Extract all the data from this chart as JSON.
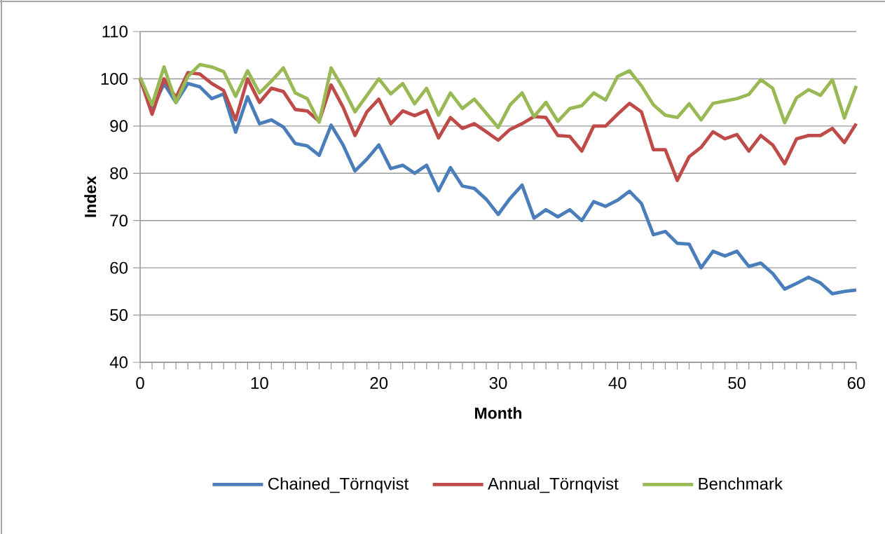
{
  "chart_data": {
    "type": "line",
    "xlabel": "Month",
    "ylabel": "Index",
    "x": [
      0,
      1,
      2,
      3,
      4,
      5,
      6,
      7,
      8,
      9,
      10,
      11,
      12,
      13,
      14,
      15,
      16,
      17,
      18,
      19,
      20,
      21,
      22,
      23,
      24,
      25,
      26,
      27,
      28,
      29,
      30,
      31,
      32,
      33,
      34,
      35,
      36,
      37,
      38,
      39,
      40,
      41,
      42,
      43,
      44,
      45,
      46,
      47,
      48,
      49,
      50,
      51,
      52,
      53,
      54,
      55,
      56,
      57,
      58,
      59,
      60
    ],
    "series": [
      {
        "name": "Chained_Törnqvist",
        "color": "#4a7ebb",
        "values": [
          100,
          93.5,
          99,
          95,
          99,
          98.3,
          95.8,
          96.8,
          88.7,
          96.2,
          90.5,
          91.3,
          89.8,
          86.3,
          85.8,
          83.8,
          90.2,
          86,
          80.5,
          83,
          86,
          81,
          81.7,
          80,
          81.7,
          76.3,
          81.2,
          77.3,
          76.8,
          74.5,
          71.3,
          74.7,
          77.5,
          70.5,
          72.3,
          70.8,
          72.3,
          70,
          74,
          73,
          74.3,
          76.2,
          73.6,
          67,
          67.7,
          65.2,
          65,
          60,
          63.5,
          62.5,
          63.5,
          60.3,
          61,
          58.8,
          55.5,
          56.7,
          58,
          56.8,
          54.5,
          55,
          55.3
        ]
      },
      {
        "name": "Annual_Törnqvist",
        "color": "#be4b48",
        "values": [
          100,
          92.5,
          100,
          96,
          101.3,
          101,
          99,
          97.5,
          91.3,
          100,
          95,
          98,
          97.3,
          93.5,
          93.2,
          91,
          98.7,
          94,
          88,
          93,
          95.7,
          90.5,
          93.2,
          92.2,
          93.3,
          87.5,
          91.8,
          89.5,
          90.5,
          88.8,
          87,
          89.3,
          90.5,
          92,
          91.8,
          88,
          87.8,
          84.7,
          90,
          90,
          92.5,
          94.8,
          93,
          85,
          85,
          78.5,
          83.5,
          85.5,
          88.8,
          87.3,
          88.2,
          84.7,
          88,
          86,
          82,
          87.3,
          88,
          88,
          89.5,
          86.5,
          90.5
        ]
      },
      {
        "name": "Benchmark",
        "color": "#98b954",
        "values": [
          100.3,
          94.5,
          102.5,
          95,
          100.5,
          103,
          102.5,
          101.5,
          96.3,
          101.7,
          97,
          99.5,
          102.3,
          97,
          95.8,
          90.8,
          102.3,
          98,
          93,
          96.5,
          100,
          96.8,
          99,
          94.7,
          98,
          92.3,
          97,
          93.7,
          95.7,
          92.7,
          89.7,
          94.5,
          97,
          92,
          95,
          91,
          93.7,
          94.3,
          97,
          95.5,
          100.5,
          101.7,
          98.5,
          94.5,
          92.3,
          91.8,
          94.7,
          91.3,
          94.8,
          95.3,
          95.8,
          96.7,
          99.8,
          98,
          90.7,
          96,
          97.7,
          96.5,
          99.8,
          91.7,
          98.5
        ]
      }
    ],
    "xlim": [
      0,
      60
    ],
    "xticks": [
      0,
      {
        "value": 1,
        "label": null
      },
      {
        "value": 2,
        "label": null
      },
      {
        "value": 3,
        "label": null
      },
      {
        "value": 4,
        "label": null
      },
      {
        "value": 5,
        "label": null
      },
      {
        "value": 6,
        "label": null
      },
      {
        "value": 7,
        "label": null
      },
      {
        "value": 8,
        "label": null
      },
      {
        "value": 9,
        "label": null
      },
      10,
      {
        "value": 11,
        "label": null
      },
      {
        "value": 12,
        "label": null
      },
      {
        "value": 13,
        "label": null
      },
      {
        "value": 14,
        "label": null
      },
      {
        "value": 15,
        "label": null
      },
      {
        "value": 16,
        "label": null
      },
      {
        "value": 17,
        "label": null
      },
      {
        "value": 18,
        "label": null
      },
      {
        "value": 19,
        "label": null
      },
      20,
      {
        "value": 21,
        "label": null
      },
      {
        "value": 22,
        "label": null
      },
      {
        "value": 23,
        "label": null
      },
      {
        "value": 24,
        "label": null
      },
      {
        "value": 25,
        "label": null
      },
      {
        "value": 26,
        "label": null
      },
      {
        "value": 27,
        "label": null
      },
      {
        "value": 28,
        "label": null
      },
      {
        "value": 29,
        "label": null
      },
      30,
      {
        "value": 31,
        "label": null
      },
      {
        "value": 32,
        "label": null
      },
      {
        "value": 33,
        "label": null
      },
      {
        "value": 34,
        "label": null
      },
      {
        "value": 35,
        "label": null
      },
      {
        "value": 36,
        "label": null
      },
      {
        "value": 37,
        "label": null
      },
      {
        "value": 38,
        "label": null
      },
      {
        "value": 39,
        "label": null
      },
      40,
      {
        "value": 41,
        "label": null
      },
      {
        "value": 42,
        "label": null
      },
      {
        "value": 43,
        "label": null
      },
      {
        "value": 44,
        "label": null
      },
      {
        "value": 45,
        "label": null
      },
      {
        "value": 46,
        "label": null
      },
      {
        "value": 47,
        "label": null
      },
      {
        "value": 48,
        "label": null
      },
      {
        "value": 49,
        "label": null
      },
      50,
      {
        "value": 51,
        "label": null
      },
      {
        "value": 52,
        "label": null
      },
      {
        "value": 53,
        "label": null
      },
      {
        "value": 54,
        "label": null
      },
      {
        "value": 55,
        "label": null
      },
      {
        "value": 56,
        "label": null
      },
      {
        "value": 57,
        "label": null
      },
      {
        "value": 58,
        "label": null
      },
      {
        "value": 59,
        "label": null
      },
      60
    ],
    "ylim": [
      40,
      110
    ],
    "yticks": [
      40,
      50,
      60,
      70,
      80,
      90,
      100,
      110
    ],
    "grid": "y",
    "legend": "bottom",
    "marker": "none",
    "line_style": "solid"
  }
}
